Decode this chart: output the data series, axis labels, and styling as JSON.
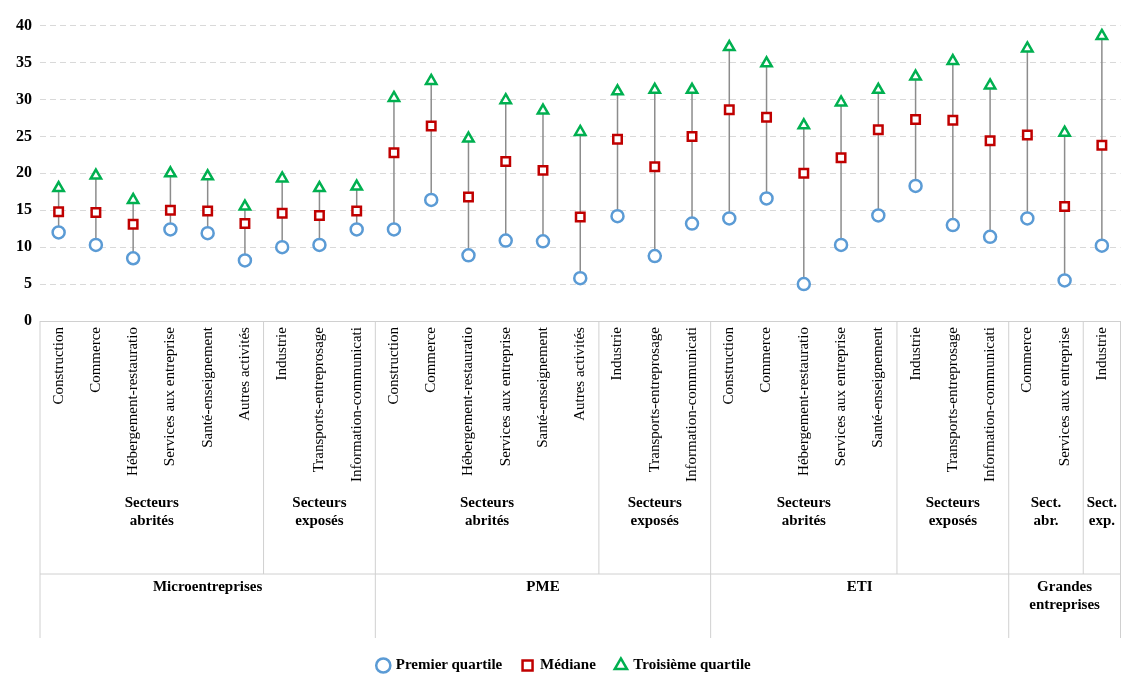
{
  "chart_data": {
    "type": "scatter",
    "categories": [
      "Construction",
      "Commerce",
      "Hébergement-restauratio",
      "Services aux entreprise",
      "Santé-enseignement",
      "Autres activités",
      "Industrie",
      "Transports-entreprosage",
      "Information-communicati",
      "Construction",
      "Commerce",
      "Hébergement-restauratio",
      "Services aux entreprise",
      "Santé-enseignement",
      "Autres activités",
      "Industrie",
      "Transports-entreprosage",
      "Information-communicati",
      "Construction",
      "Commerce",
      "Hébergement-restauratio",
      "Services aux entreprise",
      "Santé-enseignement",
      "Industrie",
      "Transports-entreprosage",
      "Information-communicati",
      "Commerce",
      "Services aux entreprise",
      "Industrie"
    ],
    "series": [
      {
        "name": "Premier quartile",
        "color": "#5b9bd5",
        "marker": "circle",
        "values": [
          12.0,
          10.3,
          8.5,
          12.4,
          11.9,
          8.2,
          10.0,
          10.3,
          12.4,
          12.4,
          16.4,
          8.9,
          10.9,
          10.8,
          5.8,
          14.2,
          8.8,
          13.2,
          13.9,
          16.6,
          5.0,
          10.3,
          14.3,
          18.3,
          13.0,
          11.4,
          13.9,
          5.5,
          10.2
        ]
      },
      {
        "name": "Médiane",
        "color": "#c00000",
        "marker": "square",
        "values": [
          14.8,
          14.7,
          13.1,
          15.0,
          14.9,
          13.2,
          14.6,
          14.3,
          14.9,
          22.8,
          26.4,
          16.8,
          21.6,
          20.4,
          14.1,
          24.6,
          20.9,
          25.0,
          28.6,
          27.6,
          20.0,
          22.1,
          25.9,
          27.3,
          27.2,
          24.4,
          25.2,
          15.5,
          23.8
        ]
      },
      {
        "name": "Troisième quartile",
        "color": "#00b050",
        "marker": "triangle",
        "values": [
          18.0,
          19.7,
          16.4,
          20.0,
          19.6,
          15.5,
          19.3,
          18.0,
          18.2,
          30.2,
          32.5,
          24.7,
          29.9,
          28.5,
          25.6,
          31.1,
          31.3,
          31.3,
          37.1,
          34.9,
          26.5,
          29.6,
          31.3,
          33.1,
          35.2,
          31.9,
          36.9,
          25.5,
          38.6
        ]
      }
    ],
    "annotations": [
      "Secteurs abrités",
      "Secteurs exposés",
      "Secteurs abrités",
      "Secteurs exposés",
      "Secteurs abrités",
      "Secteurs exposés",
      "Sect. abr.",
      "Sect. exp.",
      "Microentreprises",
      "PME",
      "ETI",
      "Grandes entreprises"
    ],
    "ylim": [
      0,
      40
    ],
    "yticks": [
      0,
      5,
      10,
      15,
      20,
      25,
      30,
      35,
      40
    ],
    "grid": "y",
    "legend": "bottom"
  }
}
